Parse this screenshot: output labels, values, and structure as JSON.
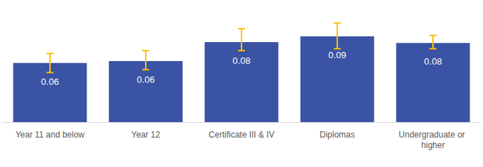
{
  "chart_data": {
    "type": "bar",
    "categories": [
      "Year 11 and below",
      "Year 12",
      "Certificate III & IV",
      "Diplomas",
      "Undergraduate or higher"
    ],
    "values": [
      0.062,
      0.064,
      0.084,
      0.09,
      0.083
    ],
    "value_labels": [
      "0.06",
      "0.06",
      "0.08",
      "0.09",
      "0.08"
    ],
    "error_low": [
      0.052,
      0.055,
      0.075,
      0.077,
      0.077
    ],
    "error_high": [
      0.072,
      0.075,
      0.098,
      0.104,
      0.091
    ],
    "color": "#3A53A4",
    "ylim": [
      0,
      0.12
    ],
    "grid": false,
    "data_labels": true,
    "tick_labels": "x"
  }
}
